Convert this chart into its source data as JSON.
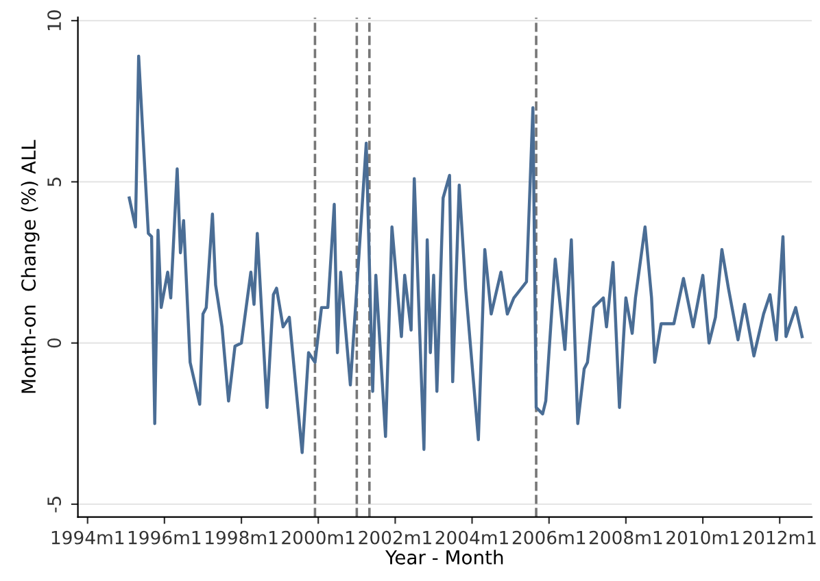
{
  "chart_data": {
    "type": "line",
    "xlabel": "Year - Month",
    "ylabel": "Month-on  Change (%) ALL",
    "x": [
      "1995-02",
      "1995-04",
      "1995-05",
      "1995-08",
      "1995-09",
      "1995-10",
      "1995-11",
      "1995-12",
      "1996-02",
      "1996-03",
      "1996-05",
      "1996-06",
      "1996-07",
      "1996-09",
      "1996-12",
      "1997-01",
      "1997-02",
      "1997-04",
      "1997-05",
      "1997-07",
      "1997-09",
      "1997-11",
      "1998-01",
      "1998-04",
      "1998-05",
      "1998-06",
      "1998-09",
      "1998-11",
      "1998-12",
      "1999-02",
      "1999-04",
      "1999-08",
      "1999-10",
      "1999-12",
      "2000-02",
      "2000-04",
      "2000-06",
      "2000-07",
      "2000-08",
      "2000-11",
      "2001-01",
      "2001-04",
      "2001-06",
      "2001-07",
      "2001-10",
      "2001-12",
      "2002-03",
      "2002-04",
      "2002-06",
      "2002-07",
      "2002-09",
      "2002-10",
      "2002-11",
      "2002-12",
      "2003-01",
      "2003-02",
      "2003-04",
      "2003-06",
      "2003-07",
      "2003-09",
      "2003-11",
      "2004-03",
      "2004-05",
      "2004-07",
      "2004-10",
      "2004-12",
      "2005-02",
      "2005-06",
      "2005-08",
      "2005-09",
      "2005-11",
      "2005-12",
      "2006-03",
      "2006-06",
      "2006-08",
      "2006-10",
      "2006-12",
      "2007-01",
      "2007-03",
      "2007-06",
      "2007-07",
      "2007-09",
      "2007-11",
      "2008-01",
      "2008-03",
      "2008-04",
      "2008-07",
      "2008-09",
      "2008-10",
      "2008-12",
      "2009-04",
      "2009-07",
      "2009-10",
      "2010-01",
      "2010-03",
      "2010-05",
      "2010-07",
      "2010-09",
      "2010-12",
      "2011-02",
      "2011-05",
      "2011-08",
      "2011-10",
      "2011-12",
      "2012-02",
      "2012-03",
      "2012-06",
      "2012-08"
    ],
    "series": [
      {
        "color": "#4a6d95",
        "values": [
          4.5,
          3.6,
          8.9,
          3.4,
          3.3,
          -2.5,
          3.5,
          1.1,
          2.2,
          1.4,
          5.4,
          2.8,
          3.8,
          -0.6,
          -1.9,
          0.9,
          1.1,
          4.0,
          1.8,
          0.5,
          -1.8,
          -0.1,
          0.0,
          2.2,
          1.2,
          3.4,
          -2.0,
          1.5,
          1.7,
          0.5,
          0.8,
          -3.4,
          -0.3,
          -0.6,
          1.1,
          1.1,
          4.3,
          -0.3,
          2.2,
          -1.3,
          1.7,
          6.2,
          -1.5,
          2.1,
          -2.9,
          3.6,
          0.2,
          2.1,
          0.4,
          5.1,
          -0.6,
          -3.3,
          3.2,
          -0.3,
          2.1,
          -1.5,
          4.5,
          5.2,
          -1.2,
          4.9,
          1.7,
          -3.0,
          2.9,
          0.9,
          2.2,
          0.9,
          1.4,
          1.9,
          7.3,
          -2.0,
          -2.2,
          -1.8,
          2.6,
          -0.2,
          3.2,
          -2.5,
          -0.8,
          -0.6,
          1.1,
          1.4,
          0.5,
          2.5,
          -2.0,
          1.4,
          0.3,
          1.4,
          3.6,
          1.4,
          -0.6,
          0.6,
          0.6,
          2.0,
          0.5,
          2.1,
          0.0,
          0.8,
          2.9,
          1.7,
          0.1,
          1.2,
          -0.4,
          0.9,
          1.5,
          0.1,
          3.3,
          0.2,
          1.1,
          0.2
        ]
      }
    ],
    "xlim": [
      "1993-10",
      "2012-11"
    ],
    "xticks": [
      {
        "value": "1994-01",
        "label": "1994m1"
      },
      {
        "value": "1996-01",
        "label": "1996m1"
      },
      {
        "value": "1998-01",
        "label": "1998m1"
      },
      {
        "value": "2000-01",
        "label": "2000m1"
      },
      {
        "value": "2002-01",
        "label": "2002m1"
      },
      {
        "value": "2004-01",
        "label": "2004m1"
      },
      {
        "value": "2006-01",
        "label": "2006m1"
      },
      {
        "value": "2008-01",
        "label": "2008m1"
      },
      {
        "value": "2010-01",
        "label": "2010m1"
      },
      {
        "value": "2012-01",
        "label": "2012m1"
      }
    ],
    "ylim": [
      -5.4,
      10.1
    ],
    "yticks": [
      -5,
      0,
      5,
      10
    ],
    "ref_lines": [
      {
        "axis": "x",
        "value": "1999-12",
        "color": "#777777",
        "line_style": "dashed"
      },
      {
        "axis": "x",
        "value": "2001-01",
        "color": "#777777",
        "line_style": "dashed"
      },
      {
        "axis": "x",
        "value": "2001-05",
        "color": "#777777",
        "line_style": "dashed"
      },
      {
        "axis": "x",
        "value": "2005-09",
        "color": "#777777",
        "line_style": "dashed"
      }
    ],
    "grid": "y",
    "line_style": "solid",
    "marker": "none"
  }
}
